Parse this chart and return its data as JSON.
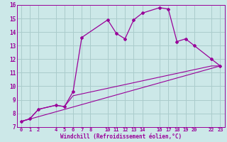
{
  "xlabel": "Windchill (Refroidissement éolien,°C)",
  "bg_color": "#cce8e8",
  "grid_color": "#aacccc",
  "line_color": "#990099",
  "xlim": [
    -0.5,
    23.5
  ],
  "ylim": [
    7,
    16
  ],
  "xticks": [
    0,
    1,
    2,
    4,
    5,
    6,
    7,
    8,
    10,
    11,
    12,
    13,
    14,
    16,
    17,
    18,
    19,
    20,
    22,
    23
  ],
  "xtick_labels": [
    "0",
    "1",
    "2",
    "4",
    "5",
    "6",
    "7",
    "8",
    "10",
    "11",
    "12",
    "13",
    "14",
    "16",
    "17",
    "18",
    "19",
    "20",
    "22",
    "23"
  ],
  "yticks": [
    7,
    8,
    9,
    10,
    11,
    12,
    13,
    14,
    15,
    16
  ],
  "series1_x": [
    0,
    1,
    2,
    4,
    5,
    6,
    7,
    10,
    11,
    12,
    13,
    14,
    16,
    17,
    18,
    19,
    20,
    22,
    23
  ],
  "series1_y": [
    7.4,
    7.6,
    8.3,
    8.6,
    8.5,
    9.6,
    13.6,
    14.9,
    13.9,
    13.5,
    14.9,
    15.4,
    15.8,
    15.7,
    13.3,
    13.5,
    13.0,
    12.0,
    11.5
  ],
  "series2_x": [
    0,
    1,
    2,
    4,
    5,
    6,
    22,
    23
  ],
  "series2_y": [
    7.4,
    7.6,
    8.3,
    8.6,
    8.5,
    9.3,
    11.5,
    11.5
  ],
  "series3_x": [
    0,
    23
  ],
  "series3_y": [
    7.4,
    11.5
  ]
}
